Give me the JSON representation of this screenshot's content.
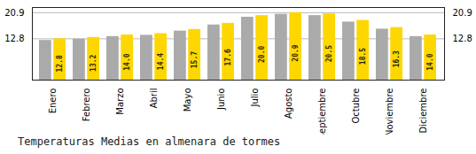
{
  "chart_data": {
    "type": "bar",
    "title": "Temperaturas Medias en almenara de tormes",
    "categories": [
      "Enero",
      "Febrero",
      "Marzo",
      "Abril",
      "Mayo",
      "Junio",
      "Julio",
      "Agosto",
      "Septiembre",
      "Octubre",
      "Noviembre",
      "Diciembre"
    ],
    "series": [
      {
        "color": "#AAAAAA",
        "values": [
          12.3,
          12.7,
          13.5,
          13.9,
          15.2,
          17.1,
          19.5,
          20.4,
          20.0,
          18.0,
          15.8,
          13.5
        ]
      },
      {
        "color": "#FFD700",
        "values": [
          12.8,
          13.2,
          14.0,
          14.4,
          15.7,
          17.6,
          20.0,
          20.9,
          20.5,
          18.5,
          16.3,
          14.0
        ],
        "data_labels": true,
        "value_labels": [
          "12.8",
          "13.2",
          "14.0",
          "14.4",
          "15.7",
          "17.6",
          "20.0",
          "20.9",
          "20.5",
          "18.5",
          "16.3",
          "14.0"
        ]
      }
    ],
    "ylim": [
      0,
      22.5
    ],
    "yticks": [
      12.8,
      20.9
    ],
    "grid": true
  }
}
